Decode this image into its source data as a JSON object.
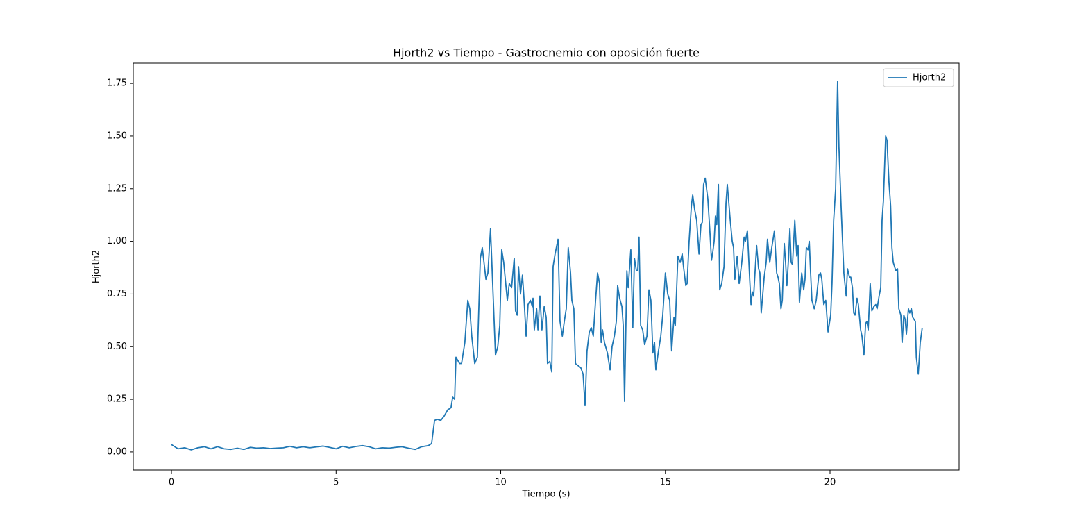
{
  "chart_data": {
    "type": "line",
    "title": "Hjorth2 vs Tiempo - Gastrocnemio con oposición fuerte",
    "x_label": "Tiempo (s)",
    "y_label": "Hjorth2",
    "legend": "upper right",
    "grid": false,
    "xlim": [
      -1.16,
      23.92
    ],
    "ylim": [
      -0.086,
      1.846
    ],
    "xticks": [
      0,
      5,
      10,
      15,
      20
    ],
    "yticks": [
      {
        "value": 0,
        "label": "0.00"
      },
      {
        "value": 0.25,
        "label": "0.25"
      },
      {
        "value": 0.5,
        "label": "0.50"
      },
      {
        "value": 0.75,
        "label": "0.75"
      },
      {
        "value": 1,
        "label": "1.00"
      },
      {
        "value": 1.25,
        "label": "1.25"
      },
      {
        "value": 1.5,
        "label": "1.50"
      },
      {
        "value": 1.75,
        "label": "1.75"
      }
    ],
    "x": [
      0,
      0.2,
      0.4,
      0.6,
      0.8,
      1,
      1.2,
      1.4,
      1.6,
      1.8,
      2,
      2.2,
      2.4,
      2.6,
      2.8,
      3,
      3.2,
      3.4,
      3.6,
      3.8,
      4,
      4.2,
      4.4,
      4.6,
      4.8,
      5,
      5.2,
      5.4,
      5.6,
      5.8,
      6,
      6.2,
      6.4,
      6.6,
      6.8,
      7,
      7.2,
      7.4,
      7.6,
      7.8,
      7.9,
      7.99,
      8.07,
      8.18,
      8.28,
      8.39,
      8.49,
      8.54,
      8.6,
      8.64,
      8.75,
      8.81,
      8.91,
      9,
      9.06,
      9.12,
      9.21,
      9.29,
      9.38,
      9.44,
      9.55,
      9.61,
      9.69,
      9.84,
      9.91,
      9.97,
      10.03,
      10.09,
      10.2,
      10.26,
      10.33,
      10.41,
      10.45,
      10.5,
      10.54,
      10.6,
      10.66,
      10.71,
      10.77,
      10.83,
      10.9,
      10.96,
      10.98,
      11.02,
      11.09,
      11.13,
      11.19,
      11.25,
      11.32,
      11.38,
      11.42,
      11.49,
      11.55,
      11.59,
      11.65,
      11.74,
      11.8,
      11.87,
      11.93,
      11.99,
      12.05,
      12.12,
      12.16,
      12.22,
      12.27,
      12.35,
      12.43,
      12.5,
      12.56,
      12.62,
      12.69,
      12.75,
      12.81,
      12.88,
      12.94,
      13,
      13.05,
      13.09,
      13.15,
      13.24,
      13.32,
      13.38,
      13.45,
      13.51,
      13.55,
      13.61,
      13.68,
      13.72,
      13.76,
      13.83,
      13.87,
      13.95,
      14.01,
      14.06,
      14.12,
      14.16,
      14.2,
      14.25,
      14.31,
      14.37,
      14.44,
      14.5,
      14.56,
      14.62,
      14.67,
      14.71,
      14.79,
      14.86,
      14.92,
      15,
      15.07,
      15.13,
      15.19,
      15.26,
      15.3,
      15.38,
      15.45,
      15.51,
      15.55,
      15.62,
      15.66,
      15.72,
      15.79,
      15.83,
      15.89,
      15.95,
      16.02,
      16.08,
      16.12,
      16.16,
      16.21,
      16.25,
      16.29,
      16.35,
      16.4,
      16.44,
      16.48,
      16.52,
      16.56,
      16.61,
      16.65,
      16.71,
      16.78,
      16.84,
      16.88,
      16.97,
      17.03,
      17.07,
      17.11,
      17.18,
      17.24,
      17.28,
      17.32,
      17.39,
      17.43,
      17.49,
      17.56,
      17.6,
      17.64,
      17.68,
      17.77,
      17.83,
      17.87,
      17.91,
      18,
      18.06,
      18.1,
      18.17,
      18.23,
      18.31,
      18.38,
      18.42,
      18.46,
      18.51,
      18.55,
      18.61,
      18.65,
      18.69,
      18.74,
      18.78,
      18.82,
      18.86,
      18.93,
      18.99,
      19.03,
      19.07,
      19.14,
      19.2,
      19.24,
      19.28,
      19.33,
      19.37,
      19.41,
      19.45,
      19.52,
      19.58,
      19.66,
      19.71,
      19.75,
      19.81,
      19.87,
      19.94,
      20.02,
      20.06,
      20.11,
      20.17,
      20.23,
      20.27,
      20.34,
      20.38,
      20.42,
      20.49,
      20.53,
      20.59,
      20.63,
      20.68,
      20.72,
      20.76,
      20.82,
      20.86,
      20.93,
      20.97,
      21.03,
      21.08,
      21.12,
      21.16,
      21.22,
      21.27,
      21.33,
      21.39,
      21.43,
      21.49,
      21.54,
      21.58,
      21.62,
      21.69,
      21.73,
      21.79,
      21.84,
      21.88,
      21.92,
      21.96,
      22,
      22.05,
      22.09,
      22.15,
      22.19,
      22.24,
      22.28,
      22.32,
      22.38,
      22.42,
      22.47,
      22.51,
      22.55,
      22.59,
      22.62,
      22.68,
      22.74,
      22.8
    ],
    "series": [
      {
        "name": "Hjorth2",
        "color": "#1f77b4",
        "values": [
          0.035,
          0.015,
          0.02,
          0.01,
          0.02,
          0.025,
          0.015,
          0.025,
          0.015,
          0.012,
          0.018,
          0.012,
          0.022,
          0.018,
          0.02,
          0.016,
          0.018,
          0.02,
          0.027,
          0.02,
          0.025,
          0.02,
          0.024,
          0.028,
          0.022,
          0.015,
          0.027,
          0.02,
          0.026,
          0.03,
          0.025,
          0.015,
          0.02,
          0.018,
          0.022,
          0.025,
          0.018,
          0.012,
          0.025,
          0.03,
          0.04,
          0.15,
          0.155,
          0.15,
          0.17,
          0.2,
          0.21,
          0.26,
          0.25,
          0.45,
          0.42,
          0.42,
          0.52,
          0.72,
          0.68,
          0.55,
          0.42,
          0.45,
          0.92,
          0.97,
          0.82,
          0.85,
          1.06,
          0.46,
          0.5,
          0.6,
          0.96,
          0.9,
          0.72,
          0.8,
          0.78,
          0.92,
          0.67,
          0.65,
          0.88,
          0.75,
          0.84,
          0.72,
          0.55,
          0.7,
          0.72,
          0.69,
          0.73,
          0.58,
          0.68,
          0.58,
          0.74,
          0.58,
          0.69,
          0.64,
          0.42,
          0.43,
          0.38,
          0.88,
          0.94,
          1.01,
          0.62,
          0.55,
          0.62,
          0.68,
          0.97,
          0.85,
          0.72,
          0.68,
          0.42,
          0.41,
          0.4,
          0.37,
          0.22,
          0.48,
          0.57,
          0.59,
          0.55,
          0.72,
          0.85,
          0.8,
          0.52,
          0.58,
          0.52,
          0.47,
          0.39,
          0.5,
          0.55,
          0.62,
          0.79,
          0.73,
          0.69,
          0.6,
          0.24,
          0.86,
          0.78,
          0.96,
          0.59,
          0.92,
          0.86,
          0.86,
          1.02,
          0.6,
          0.58,
          0.51,
          0.55,
          0.77,
          0.72,
          0.47,
          0.52,
          0.39,
          0.48,
          0.55,
          0.65,
          0.85,
          0.75,
          0.72,
          0.48,
          0.64,
          0.6,
          0.93,
          0.9,
          0.94,
          0.88,
          0.79,
          0.8,
          1,
          1.17,
          1.22,
          1.15,
          1.1,
          0.94,
          1.08,
          1.09,
          1.27,
          1.3,
          1.25,
          1.2,
          1.05,
          0.91,
          0.95,
          1,
          1.12,
          1.08,
          1.27,
          0.77,
          0.8,
          0.88,
          1.18,
          1.27,
          1.1,
          1,
          0.97,
          0.82,
          0.93,
          0.8,
          0.85,
          0.9,
          1.02,
          1,
          1.05,
          0.82,
          0.7,
          0.76,
          0.74,
          0.98,
          0.87,
          0.85,
          0.66,
          0.83,
          0.9,
          1.01,
          0.9,
          0.97,
          1.05,
          0.85,
          0.83,
          0.8,
          0.68,
          0.72,
          0.99,
          0.9,
          0.79,
          0.92,
          1.06,
          0.9,
          0.89,
          1.1,
          0.93,
          0.98,
          0.71,
          0.85,
          0.77,
          0.82,
          0.97,
          0.96,
          1,
          0.85,
          0.72,
          0.68,
          0.72,
          0.84,
          0.85,
          0.82,
          0.7,
          0.72,
          0.57,
          0.65,
          0.8,
          1.1,
          1.25,
          1.76,
          1.45,
          1.15,
          1,
          0.85,
          0.74,
          0.87,
          0.83,
          0.83,
          0.78,
          0.66,
          0.65,
          0.73,
          0.7,
          0.58,
          0.55,
          0.46,
          0.61,
          0.62,
          0.58,
          0.8,
          0.67,
          0.69,
          0.7,
          0.68,
          0.74,
          0.78,
          1.1,
          1.19,
          1.5,
          1.48,
          1.28,
          1.17,
          0.97,
          0.9,
          0.88,
          0.86,
          0.87,
          0.68,
          0.65,
          0.52,
          0.65,
          0.63,
          0.56,
          0.68,
          0.66,
          0.68,
          0.64,
          0.63,
          0.62,
          0.45,
          0.37,
          0.52,
          0.59
        ]
      }
    ]
  }
}
